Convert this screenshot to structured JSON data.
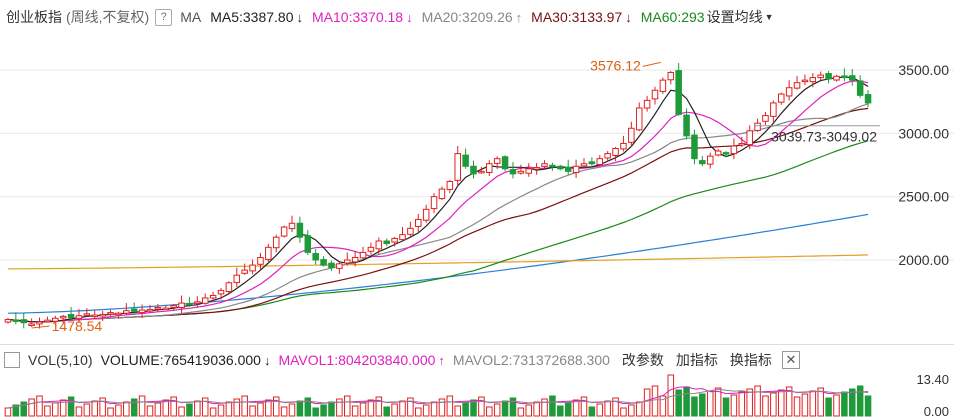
{
  "header": {
    "title": "创业板指",
    "subtitle": "(周线,不复权)",
    "question_icon": "question-icon",
    "ma_label": "MA",
    "ma_items": [
      {
        "label": "MA5:3387.80",
        "color": "#222222",
        "arrow": "↓"
      },
      {
        "label": "MA10:3370.18",
        "color": "#e020c0",
        "arrow": "↓"
      },
      {
        "label": "MA20:3209.26",
        "color": "#888888",
        "arrow": "↑"
      },
      {
        "label": "MA30:3133.97",
        "color": "#7a1010",
        "arrow": "↓"
      },
      {
        "label": "MA60:293",
        "color": "#1a8a1a",
        "arrow": ""
      }
    ],
    "settings_label": "设置均线"
  },
  "price_axis": {
    "ticks": [
      "3500.00",
      "3000.00",
      "2500.00",
      "2000.00"
    ]
  },
  "annotations": {
    "high": "3576.12",
    "low": "1478.54",
    "range": "3039.73-3049.02"
  },
  "volume_header": {
    "label": "VOL(5,10)",
    "volume": "VOLUME:765419036.000",
    "volume_arrow": "↓",
    "mavol1": "MAVOL1:804203840.000",
    "mavol1_arrow": "↑",
    "mavol2": "MAVOL2:731372688.300",
    "buttons": [
      "改参数",
      "加指标",
      "换指标"
    ],
    "close_icon": "close-icon"
  },
  "volume_axis": {
    "ticks": [
      "13.40",
      "0.00"
    ]
  },
  "colors": {
    "up": "#e02020",
    "down": "#1f9a3a",
    "ma5": "#222222",
    "ma10": "#e020c0",
    "ma20": "#888888",
    "ma30": "#7a1010",
    "ma60": "#1a8a1a",
    "ma120": "#2a7fd4",
    "ma250": "#e0a020"
  },
  "chart_data": {
    "type": "candlestick",
    "y_axis": {
      "ticks": [
        3500,
        3000,
        2500,
        2000
      ],
      "range": [
        1400,
        3700
      ]
    },
    "closes": [
      1530,
      1520,
      1505,
      1495,
      1510,
      1525,
      1540,
      1555,
      1545,
      1560,
      1575,
      1565,
      1570,
      1585,
      1580,
      1600,
      1595,
      1605,
      1610,
      1625,
      1620,
      1640,
      1660,
      1650,
      1670,
      1700,
      1720,
      1760,
      1820,
      1880,
      1920,
      1960,
      2020,
      2100,
      2180,
      2260,
      2290,
      2180,
      2060,
      2000,
      1960,
      1940,
      1970,
      2000,
      2020,
      2060,
      2100,
      2150,
      2130,
      2170,
      2200,
      2250,
      2320,
      2400,
      2500,
      2560,
      2620,
      2840,
      2740,
      2680,
      2700,
      2760,
      2800,
      2720,
      2680,
      2700,
      2720,
      2730,
      2760,
      2740,
      2720,
      2700,
      2740,
      2760,
      2760,
      2800,
      2840,
      2880,
      2920,
      3040,
      3200,
      3260,
      3340,
      3420,
      3480,
      3150,
      2980,
      2800,
      2760,
      2820,
      2860,
      2840,
      2900,
      2920,
      3020,
      3080,
      3140,
      3240,
      3310,
      3360,
      3400,
      3420,
      3440,
      3460,
      3430,
      3450,
      3440,
      3420,
      3300,
      3240
    ],
    "ma_series": [
      {
        "name": "MA5",
        "value": "3387.80"
      },
      {
        "name": "MA10",
        "value": "3370.18"
      },
      {
        "name": "MA20",
        "value": "3209.26"
      },
      {
        "name": "MA30",
        "value": "3133.97"
      },
      {
        "name": "MA60",
        "value": "293"
      }
    ],
    "annotations": {
      "high": 3576.12,
      "low": 1478.54,
      "range_label": "3039.73-3049.02"
    },
    "volume": {
      "ticks": [
        13.4,
        0.0
      ],
      "volume": 765419036.0,
      "mavol1": 804203840.0,
      "mavol2": 731372688.3
    }
  }
}
